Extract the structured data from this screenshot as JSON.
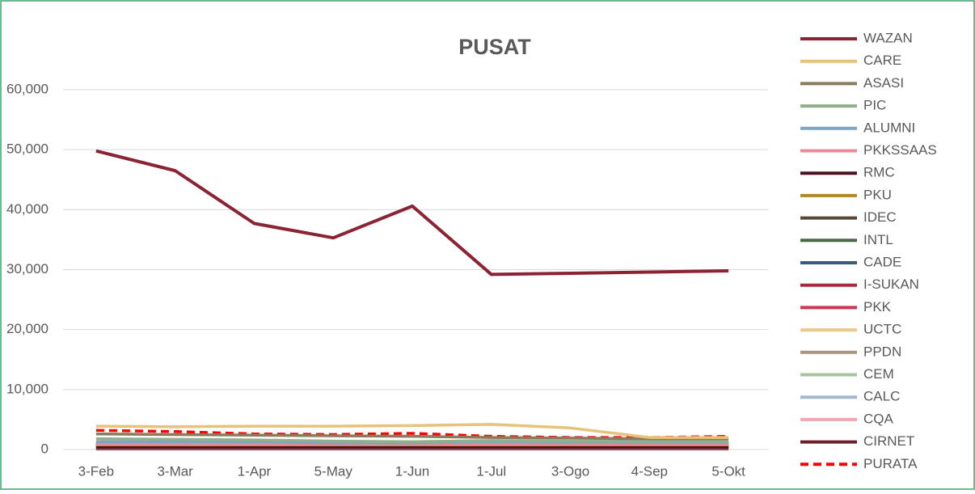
{
  "chart_data": {
    "type": "line",
    "title": "PUSAT",
    "categories": [
      "3-Feb",
      "3-Mar",
      "1-Apr",
      "5-May",
      "1-Jun",
      "1-Jul",
      "3-Ogo",
      "4-Sep",
      "5-Okt"
    ],
    "ylim": [
      0,
      60000
    ],
    "yticks": [
      0,
      {
        "value": 10000,
        "label": "10,000"
      },
      {
        "value": 20000,
        "label": "20,000"
      },
      {
        "value": 30000,
        "label": "30,000"
      },
      {
        "value": 40000,
        "label": "40,000"
      },
      {
        "value": 50000,
        "label": "50,000"
      },
      {
        "value": 60000,
        "label": "60,000"
      }
    ],
    "grid": true,
    "legend": "right",
    "series": [
      {
        "name": "WAZAN",
        "color": "#8b2332",
        "values": [
          49800,
          46500,
          37700,
          35300,
          40600,
          29200,
          29400,
          29600,
          29800
        ]
      },
      {
        "name": "CARE",
        "color": "#e6c27a",
        "values": [
          3900,
          3800,
          3900,
          3900,
          4000,
          4200,
          3600,
          2000,
          2000
        ]
      },
      {
        "name": "ASASI",
        "color": "#8b7a5c",
        "values": [
          2600,
          2500,
          2400,
          2300,
          2200,
          2000,
          1900,
          1800,
          1800
        ]
      },
      {
        "name": "PIC",
        "color": "#8fb08a",
        "values": [
          1800,
          1700,
          1600,
          1400,
          1300,
          1500,
          1400,
          1400,
          1400
        ]
      },
      {
        "name": "ALUMNI",
        "color": "#7fa3c0",
        "values": [
          1300,
          1300,
          1300,
          1100,
          1100,
          1300,
          1200,
          1200,
          1200
        ]
      },
      {
        "name": "PKKSSAAS",
        "color": "#e68c99",
        "values": [
          900,
          900,
          900,
          900,
          900,
          900,
          900,
          900,
          900
        ]
      },
      {
        "name": "RMC",
        "color": "#4f1020",
        "values": [
          300,
          300,
          300,
          300,
          300,
          300,
          300,
          300,
          300
        ]
      },
      {
        "name": "PKU",
        "color": "#b08a2a",
        "values": [
          700,
          700,
          700,
          700,
          700,
          700,
          700,
          700,
          700
        ]
      },
      {
        "name": "IDEC",
        "color": "#574737",
        "values": [
          1000,
          1000,
          1000,
          1000,
          1000,
          1000,
          1000,
          1000,
          1000
        ]
      },
      {
        "name": "INTL",
        "color": "#4a6a44",
        "values": [
          600,
          600,
          600,
          600,
          600,
          600,
          600,
          600,
          600
        ]
      },
      {
        "name": "CADE",
        "color": "#3a5c7a",
        "values": [
          800,
          800,
          800,
          800,
          800,
          800,
          800,
          800,
          800
        ]
      },
      {
        "name": "I-SUKAN",
        "color": "#a8283e",
        "values": [
          400,
          400,
          400,
          400,
          400,
          400,
          400,
          400,
          400
        ]
      },
      {
        "name": "PKK",
        "color": "#c83a55",
        "values": [
          500,
          500,
          500,
          500,
          500,
          500,
          500,
          500,
          500
        ]
      },
      {
        "name": "UCTC",
        "color": "#ecc987",
        "values": [
          1100,
          1100,
          1100,
          1100,
          1100,
          1100,
          1100,
          1100,
          1100
        ]
      },
      {
        "name": "PPDN",
        "color": "#a89680",
        "values": [
          1200,
          1200,
          1200,
          1200,
          1200,
          1200,
          1200,
          1200,
          1200
        ]
      },
      {
        "name": "CEM",
        "color": "#a8c4a0",
        "values": [
          1000,
          1000,
          1000,
          1000,
          1000,
          1000,
          1000,
          1000,
          1000
        ]
      },
      {
        "name": "CALC",
        "color": "#a0b8d0",
        "values": [
          700,
          700,
          700,
          700,
          700,
          700,
          700,
          700,
          700
        ]
      },
      {
        "name": "CQA",
        "color": "#eea8b0",
        "values": [
          200,
          200,
          200,
          200,
          200,
          200,
          200,
          200,
          200
        ]
      },
      {
        "name": "CIRNET",
        "color": "#6b1e2c",
        "values": [
          100,
          100,
          100,
          100,
          100,
          100,
          100,
          100,
          100
        ]
      },
      {
        "name": "PURATA",
        "color": "#ff0000",
        "dashed": true,
        "values": [
          3200,
          3000,
          2600,
          2500,
          2700,
          2200,
          2000,
          2000,
          2200
        ]
      }
    ]
  }
}
